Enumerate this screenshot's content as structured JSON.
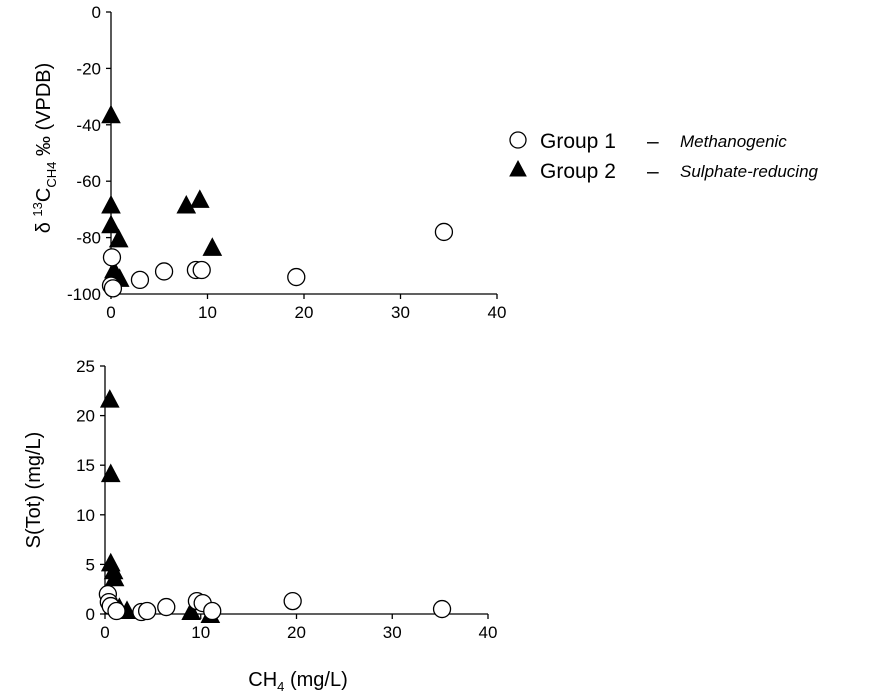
{
  "chart_data": [
    {
      "type": "scatter",
      "xlabel": "",
      "ylabel_main": "δ ",
      "ylabel_sup": "13",
      "ylabel_mid": "C",
      "ylabel_sub": "CH4",
      "ylabel_end": " ‰ (VPDB)",
      "xlim": [
        0,
        40
      ],
      "ylim": [
        -100,
        0
      ],
      "xticks": [
        "0",
        "10",
        "20",
        "30",
        "40"
      ],
      "yticks": [
        "0",
        "-20",
        "-40",
        "-60",
        "-80",
        "-100"
      ],
      "series": [
        {
          "name": "Group 1",
          "marker": "circle",
          "points": [
            [
              0.1,
              -87
            ],
            [
              0.0,
              -97
            ],
            [
              0.2,
              -98
            ],
            [
              3.0,
              -95
            ],
            [
              5.5,
              -92
            ],
            [
              8.8,
              -91.5
            ],
            [
              9.4,
              -91.5
            ],
            [
              19.2,
              -94
            ],
            [
              34.5,
              -78
            ]
          ]
        },
        {
          "name": "Group 2",
          "marker": "triangle",
          "points": [
            [
              0.0,
              -37
            ],
            [
              0.0,
              -69
            ],
            [
              0.0,
              -76
            ],
            [
              0.8,
              -81
            ],
            [
              0.3,
              -92
            ],
            [
              0.9,
              -95
            ],
            [
              7.8,
              -69
            ],
            [
              9.2,
              -67
            ],
            [
              10.5,
              -84
            ]
          ]
        }
      ]
    },
    {
      "type": "scatter",
      "xlabel_main": "CH",
      "xlabel_sub": "4",
      "xlabel_end": " (mg/L)",
      "ylabel": "S(Tot) (mg/L)",
      "xlim": [
        0,
        40
      ],
      "ylim": [
        0,
        25
      ],
      "xticks": [
        "0",
        "10",
        "20",
        "30",
        "40"
      ],
      "yticks": [
        "25",
        "20",
        "15",
        "10",
        "5",
        "0"
      ],
      "series": [
        {
          "name": "Group 1",
          "marker": "circle",
          "points": [
            [
              0.3,
              2.0
            ],
            [
              0.4,
              1.2
            ],
            [
              0.6,
              0.8
            ],
            [
              1.2,
              0.3
            ],
            [
              3.8,
              0.2
            ],
            [
              4.4,
              0.3
            ],
            [
              6.4,
              0.7
            ],
            [
              9.6,
              1.3
            ],
            [
              10.2,
              1.1
            ],
            [
              11.2,
              0.3
            ],
            [
              19.6,
              1.3
            ],
            [
              35.2,
              0.5
            ]
          ]
        },
        {
          "name": "Group 2",
          "marker": "triangle",
          "points": [
            [
              0.5,
              21.5
            ],
            [
              0.6,
              14.0
            ],
            [
              0.6,
              5.0
            ],
            [
              0.9,
              4.2
            ],
            [
              1.0,
              3.5
            ],
            [
              1.5,
              0.5
            ],
            [
              2.3,
              0.2
            ],
            [
              9.0,
              0.1
            ],
            [
              11.0,
              -0.2
            ]
          ]
        }
      ]
    }
  ],
  "legend": {
    "items": [
      {
        "marker": "circle",
        "label": "Group 1",
        "dash": "–",
        "description": "Methanogenic"
      },
      {
        "marker": "triangle",
        "label": "Group 2",
        "dash": "–",
        "description": "Sulphate-reducing"
      }
    ]
  }
}
